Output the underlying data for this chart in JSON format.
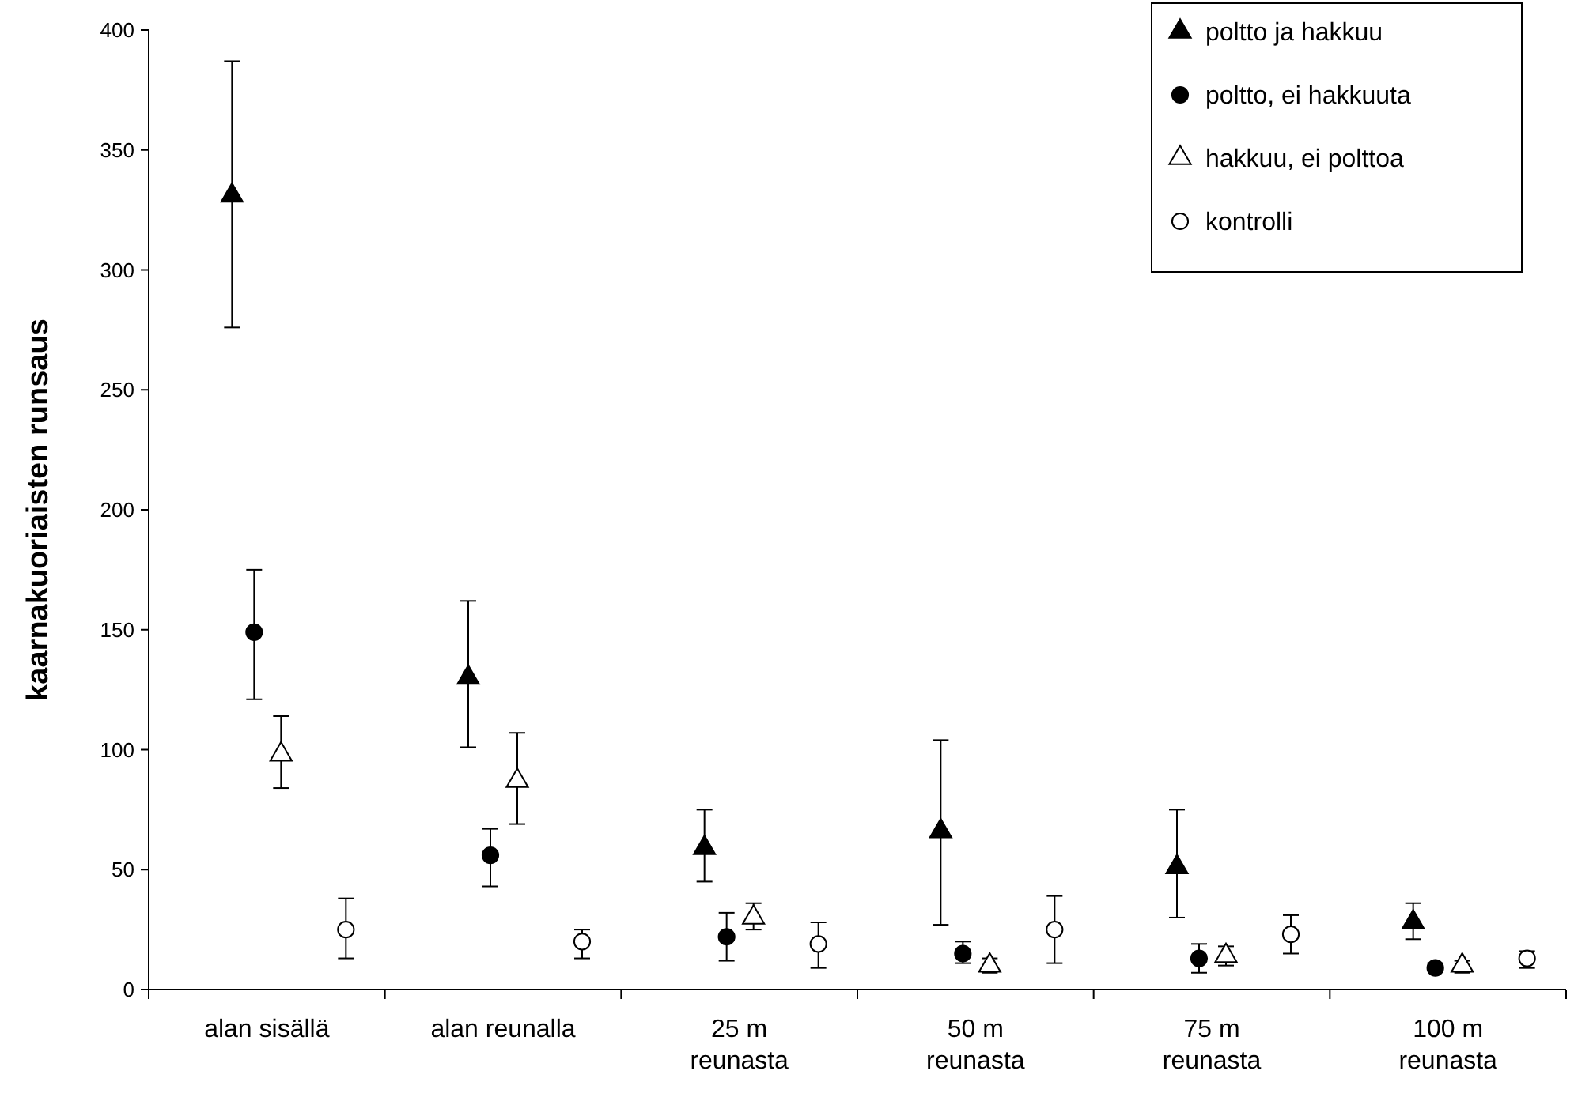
{
  "chart_data": {
    "type": "scatter",
    "ylabel": "kaarnakuoriaisten runsaus",
    "categories": [
      "alan sisällä",
      "alan reunalla",
      "25 m\nreunasta",
      "50 m\nreunasta",
      "75 m\nreunasta",
      "100 m\nreunasta"
    ],
    "ylim": [
      0,
      400
    ],
    "yticks": [
      0,
      50,
      100,
      150,
      200,
      250,
      300,
      350,
      400
    ],
    "grid": false,
    "legend": "top right",
    "series": [
      {
        "name": "poltto ja hakkuu",
        "color": "#000000",
        "marker": "triangle",
        "values": [
          331,
          130,
          59,
          66,
          51,
          28
        ],
        "errors": [
          [
            276,
            387
          ],
          [
            101,
            162
          ],
          [
            45,
            75
          ],
          [
            27,
            104
          ],
          [
            30,
            75
          ],
          [
            21,
            36
          ]
        ]
      },
      {
        "name": "poltto, ei hakkuuta",
        "color": "#000000",
        "marker": "circle",
        "values": [
          149,
          56,
          22,
          15,
          13,
          9
        ],
        "errors": [
          [
            121,
            175
          ],
          [
            43,
            67
          ],
          [
            12,
            32
          ],
          [
            11,
            20
          ],
          [
            7,
            19
          ],
          [
            8,
            11
          ]
        ]
      },
      {
        "name": "hakkuu, ei polttoa",
        "color": "#ffffff",
        "marker": "triangle",
        "values": [
          98,
          87,
          30,
          10,
          14,
          10
        ],
        "errors": [
          [
            84,
            114
          ],
          [
            69,
            107
          ],
          [
            25,
            36
          ],
          [
            7,
            13
          ],
          [
            10,
            18
          ],
          [
            7,
            12
          ]
        ]
      },
      {
        "name": "kontrolli",
        "color": "#ffffff",
        "marker": "circle",
        "values": [
          25,
          20,
          19,
          25,
          23,
          13
        ],
        "errors": [
          [
            13,
            38
          ],
          [
            13,
            25
          ],
          [
            9,
            28
          ],
          [
            11,
            39
          ],
          [
            15,
            31
          ],
          [
            9,
            16
          ]
        ]
      }
    ]
  }
}
